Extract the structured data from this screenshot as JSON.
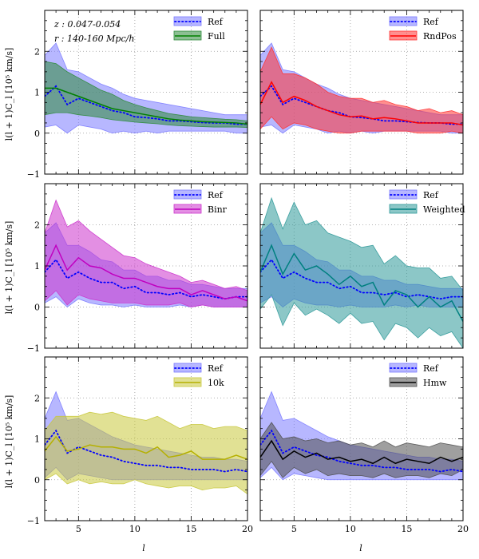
{
  "figure": {
    "xlabel": "l",
    "ylabel": "l(l + 1)C_l [10⁵ km/s]",
    "annotations": [
      "z : 0.047-0.054",
      "r : 140-160 Mpc/h"
    ]
  },
  "chart_data": [
    {
      "type": "line",
      "panel": "Full",
      "x": [
        2,
        3,
        4,
        5,
        6,
        7,
        8,
        9,
        10,
        11,
        12,
        13,
        14,
        15,
        16,
        17,
        18,
        19,
        20
      ],
      "xlim": [
        2,
        20
      ],
      "ylim": [
        -1,
        3
      ],
      "xticks": [
        5,
        10,
        15,
        20
      ],
      "yticks": [
        -1,
        0,
        1,
        2
      ],
      "grid": true,
      "legend_location": "top-right",
      "series": [
        {
          "name": "Ref",
          "color": "#0000ff",
          "band_color": "#7b7bff",
          "mean": [
            0.9,
            1.15,
            0.7,
            0.85,
            0.75,
            0.65,
            0.55,
            0.5,
            0.4,
            0.38,
            0.35,
            0.3,
            0.3,
            0.28,
            0.26,
            0.25,
            0.25,
            0.22,
            0.22
          ],
          "upper": [
            1.9,
            2.2,
            1.55,
            1.5,
            1.35,
            1.2,
            1.1,
            0.95,
            0.85,
            0.8,
            0.75,
            0.7,
            0.65,
            0.6,
            0.55,
            0.5,
            0.45,
            0.45,
            0.45
          ],
          "lower": [
            0.15,
            0.2,
            0.0,
            0.2,
            0.15,
            0.1,
            0.0,
            0.05,
            0.0,
            0.05,
            0.0,
            0.05,
            0.05,
            0.05,
            0.05,
            0.05,
            0.05,
            0.0,
            0.0
          ]
        },
        {
          "name": "Full",
          "color": "#008000",
          "band_color": "#2e8b3a",
          "mean": [
            1.1,
            1.1,
            1.0,
            0.9,
            0.8,
            0.7,
            0.6,
            0.55,
            0.5,
            0.45,
            0.4,
            0.35,
            0.32,
            0.3,
            0.28,
            0.27,
            0.26,
            0.25,
            0.22
          ],
          "upper": [
            1.75,
            1.7,
            1.5,
            1.35,
            1.2,
            1.05,
            0.95,
            0.8,
            0.7,
            0.62,
            0.55,
            0.48,
            0.44,
            0.4,
            0.38,
            0.36,
            0.34,
            0.33,
            0.3
          ],
          "lower": [
            0.45,
            0.5,
            0.5,
            0.45,
            0.42,
            0.38,
            0.33,
            0.3,
            0.27,
            0.25,
            0.23,
            0.2,
            0.18,
            0.17,
            0.16,
            0.15,
            0.15,
            0.15,
            0.14
          ]
        }
      ]
    },
    {
      "type": "line",
      "panel": "RndPos",
      "x": [
        2,
        3,
        4,
        5,
        6,
        7,
        8,
        9,
        10,
        11,
        12,
        13,
        14,
        15,
        16,
        17,
        18,
        19,
        20
      ],
      "xlim": [
        2,
        20
      ],
      "ylim": [
        -1,
        3
      ],
      "xticks": [
        5,
        10,
        15,
        20
      ],
      "yticks": [
        -1,
        0,
        1,
        2
      ],
      "grid": true,
      "legend_location": "top-right",
      "series": [
        {
          "name": "Ref",
          "color": "#0000ff",
          "band_color": "#7b7bff",
          "mean": [
            0.9,
            1.15,
            0.7,
            0.85,
            0.75,
            0.65,
            0.55,
            0.5,
            0.4,
            0.38,
            0.35,
            0.3,
            0.3,
            0.28,
            0.26,
            0.25,
            0.25,
            0.22,
            0.22
          ],
          "upper": [
            1.9,
            2.2,
            1.55,
            1.5,
            1.35,
            1.2,
            1.1,
            0.95,
            0.85,
            0.8,
            0.75,
            0.7,
            0.65,
            0.6,
            0.55,
            0.5,
            0.45,
            0.45,
            0.45
          ],
          "lower": [
            0.15,
            0.2,
            0.0,
            0.2,
            0.15,
            0.1,
            0.0,
            0.05,
            0.0,
            0.05,
            0.0,
            0.05,
            0.05,
            0.05,
            0.05,
            0.05,
            0.05,
            0.0,
            0.0
          ]
        },
        {
          "name": "RndPos",
          "color": "#ff0000",
          "band_color": "#ff3333",
          "mean": [
            0.7,
            1.25,
            0.75,
            0.9,
            0.8,
            0.65,
            0.55,
            0.45,
            0.4,
            0.42,
            0.35,
            0.38,
            0.35,
            0.3,
            0.25,
            0.25,
            0.25,
            0.25,
            0.2
          ],
          "upper": [
            1.5,
            2.1,
            1.45,
            1.45,
            1.35,
            1.2,
            1.0,
            0.9,
            0.85,
            0.85,
            0.75,
            0.8,
            0.7,
            0.65,
            0.55,
            0.6,
            0.5,
            0.55,
            0.45
          ],
          "lower": [
            0.1,
            0.4,
            0.1,
            0.25,
            0.2,
            0.1,
            0.05,
            0.0,
            0.0,
            0.05,
            0.05,
            0.05,
            0.05,
            0.05,
            0.0,
            0.0,
            0.0,
            0.05,
            0.0
          ]
        }
      ]
    },
    {
      "type": "line",
      "panel": "Binr",
      "x": [
        2,
        3,
        4,
        5,
        6,
        7,
        8,
        9,
        10,
        11,
        12,
        13,
        14,
        15,
        16,
        17,
        18,
        19,
        20
      ],
      "xlim": [
        2,
        20
      ],
      "ylim": [
        -1,
        3
      ],
      "xticks": [
        5,
        10,
        15,
        20
      ],
      "yticks": [
        -1,
        0,
        1,
        2
      ],
      "grid": true,
      "legend_location": "top-right",
      "series": [
        {
          "name": "Ref",
          "color": "#0000ff",
          "band_color": "#7b7bff",
          "mean": [
            0.85,
            1.15,
            0.7,
            0.85,
            0.7,
            0.6,
            0.6,
            0.45,
            0.5,
            0.35,
            0.35,
            0.3,
            0.35,
            0.25,
            0.3,
            0.25,
            0.2,
            0.25,
            0.25
          ],
          "upper": [
            1.8,
            2.05,
            1.5,
            1.5,
            1.35,
            1.15,
            1.1,
            0.9,
            0.9,
            0.75,
            0.75,
            0.65,
            0.65,
            0.55,
            0.55,
            0.5,
            0.45,
            0.45,
            0.45
          ],
          "lower": [
            0.1,
            0.25,
            0.0,
            0.2,
            0.1,
            0.05,
            0.05,
            0.0,
            0.05,
            0.0,
            0.0,
            0.0,
            0.05,
            0.0,
            0.05,
            0.0,
            0.0,
            0.0,
            0.0
          ]
        },
        {
          "name": "Binr",
          "color": "#c000c0",
          "band_color": "#cc33cc",
          "mean": [
            0.9,
            1.5,
            0.9,
            1.2,
            1.0,
            0.95,
            0.8,
            0.7,
            0.7,
            0.6,
            0.5,
            0.45,
            0.45,
            0.3,
            0.4,
            0.3,
            0.2,
            0.25,
            0.15
          ],
          "upper": [
            1.8,
            2.6,
            1.95,
            2.1,
            1.85,
            1.65,
            1.45,
            1.25,
            1.2,
            1.05,
            0.95,
            0.85,
            0.75,
            0.6,
            0.65,
            0.55,
            0.45,
            0.5,
            0.4
          ],
          "lower": [
            0.15,
            0.4,
            0.05,
            0.3,
            0.2,
            0.15,
            0.1,
            0.1,
            0.1,
            0.05,
            0.05,
            0.05,
            0.1,
            0.0,
            0.05,
            0.0,
            0.0,
            0.0,
            0.0
          ]
        }
      ]
    },
    {
      "type": "line",
      "panel": "Weighted",
      "x": [
        2,
        3,
        4,
        5,
        6,
        7,
        8,
        9,
        10,
        11,
        12,
        13,
        14,
        15,
        16,
        17,
        18,
        19,
        20
      ],
      "xlim": [
        2,
        20
      ],
      "ylim": [
        -1,
        3
      ],
      "xticks": [
        5,
        10,
        15,
        20
      ],
      "yticks": [
        -1,
        0,
        1,
        2
      ],
      "grid": true,
      "legend_location": "top-right",
      "series": [
        {
          "name": "Ref",
          "color": "#0000ff",
          "band_color": "#7b7bff",
          "mean": [
            0.85,
            1.15,
            0.7,
            0.85,
            0.7,
            0.6,
            0.6,
            0.45,
            0.5,
            0.35,
            0.35,
            0.3,
            0.35,
            0.25,
            0.3,
            0.25,
            0.2,
            0.25,
            0.25
          ],
          "upper": [
            1.8,
            2.05,
            1.5,
            1.5,
            1.35,
            1.15,
            1.1,
            0.9,
            0.9,
            0.75,
            0.75,
            0.65,
            0.65,
            0.55,
            0.55,
            0.5,
            0.45,
            0.45,
            0.45
          ],
          "lower": [
            0.1,
            0.25,
            0.0,
            0.2,
            0.1,
            0.05,
            0.05,
            0.0,
            0.05,
            0.0,
            0.0,
            0.0,
            0.05,
            0.0,
            0.05,
            0.0,
            0.0,
            0.0,
            0.0
          ]
        },
        {
          "name": "Weighted",
          "color": "#008080",
          "band_color": "#2e9999",
          "mean": [
            0.85,
            1.5,
            0.8,
            1.3,
            0.9,
            1.0,
            0.8,
            0.55,
            0.75,
            0.5,
            0.6,
            0.05,
            0.4,
            0.3,
            0.0,
            0.25,
            0.0,
            0.15,
            -0.35
          ],
          "upper": [
            1.8,
            2.65,
            1.9,
            2.55,
            2.0,
            2.1,
            1.8,
            1.7,
            1.6,
            1.45,
            1.5,
            1.05,
            1.25,
            1.0,
            0.95,
            0.95,
            0.7,
            0.75,
            0.4
          ],
          "lower": [
            -0.05,
            0.3,
            -0.45,
            0.1,
            -0.2,
            -0.05,
            -0.2,
            -0.4,
            -0.15,
            -0.4,
            -0.35,
            -0.8,
            -0.4,
            -0.5,
            -0.75,
            -0.5,
            -0.7,
            -0.6,
            -1.0
          ]
        }
      ]
    },
    {
      "type": "line",
      "panel": "10k",
      "x": [
        2,
        3,
        4,
        5,
        6,
        7,
        8,
        9,
        10,
        11,
        12,
        13,
        14,
        15,
        16,
        17,
        18,
        19,
        20
      ],
      "xlim": [
        2,
        20
      ],
      "ylim": [
        -1,
        3
      ],
      "xticks": [
        5,
        10,
        15,
        20
      ],
      "yticks": [
        -1,
        0,
        1,
        2
      ],
      "grid": true,
      "legend_location": "top-right",
      "series": [
        {
          "name": "Ref",
          "color": "#0000ff",
          "band_color": "#7b7bff",
          "mean": [
            0.85,
            1.2,
            0.65,
            0.8,
            0.7,
            0.6,
            0.55,
            0.45,
            0.4,
            0.35,
            0.35,
            0.3,
            0.3,
            0.25,
            0.25,
            0.25,
            0.2,
            0.25,
            0.2
          ],
          "upper": [
            1.5,
            2.15,
            1.45,
            1.5,
            1.35,
            1.2,
            1.05,
            0.95,
            0.85,
            0.8,
            0.75,
            0.7,
            0.65,
            0.6,
            0.55,
            0.55,
            0.5,
            0.5,
            0.45
          ],
          "lower": [
            0.05,
            0.3,
            0.0,
            0.15,
            0.1,
            0.05,
            0.0,
            0.0,
            0.0,
            0.0,
            0.0,
            0.0,
            0.0,
            0.0,
            0.0,
            0.0,
            0.0,
            0.0,
            0.0
          ]
        },
        {
          "name": "10k",
          "color": "#b5b000",
          "band_color": "#c8c83c",
          "mean": [
            0.7,
            1.05,
            0.7,
            0.75,
            0.85,
            0.8,
            0.8,
            0.75,
            0.75,
            0.65,
            0.8,
            0.55,
            0.6,
            0.7,
            0.5,
            0.5,
            0.5,
            0.6,
            0.5
          ],
          "upper": [
            1.2,
            1.55,
            1.55,
            1.55,
            1.65,
            1.6,
            1.65,
            1.55,
            1.5,
            1.45,
            1.55,
            1.4,
            1.25,
            1.35,
            1.35,
            1.25,
            1.3,
            1.3,
            1.2
          ],
          "lower": [
            0.0,
            0.15,
            -0.1,
            0.0,
            -0.1,
            -0.05,
            -0.1,
            -0.1,
            0.0,
            -0.1,
            -0.15,
            -0.2,
            -0.15,
            -0.15,
            -0.25,
            -0.2,
            -0.2,
            -0.15,
            -0.35
          ]
        }
      ]
    },
    {
      "type": "line",
      "panel": "Hmw",
      "x": [
        2,
        3,
        4,
        5,
        6,
        7,
        8,
        9,
        10,
        11,
        12,
        13,
        14,
        15,
        16,
        17,
        18,
        19,
        20
      ],
      "xlim": [
        2,
        20
      ],
      "ylim": [
        -1,
        3
      ],
      "xticks": [
        5,
        10,
        15,
        20
      ],
      "yticks": [
        -1,
        0,
        1,
        2
      ],
      "grid": true,
      "legend_location": "top-right",
      "series": [
        {
          "name": "Ref",
          "color": "#0000ff",
          "band_color": "#7b7bff",
          "mean": [
            0.85,
            1.2,
            0.65,
            0.8,
            0.7,
            0.6,
            0.55,
            0.45,
            0.4,
            0.35,
            0.35,
            0.3,
            0.3,
            0.25,
            0.25,
            0.25,
            0.2,
            0.25,
            0.2
          ],
          "upper": [
            1.5,
            2.15,
            1.45,
            1.5,
            1.35,
            1.2,
            1.05,
            0.95,
            0.85,
            0.8,
            0.75,
            0.7,
            0.65,
            0.6,
            0.55,
            0.55,
            0.5,
            0.5,
            0.45
          ],
          "lower": [
            0.05,
            0.3,
            0.0,
            0.15,
            0.1,
            0.05,
            0.0,
            0.0,
            0.0,
            0.0,
            0.0,
            0.0,
            0.0,
            0.0,
            0.0,
            0.0,
            0.0,
            0.0,
            0.0
          ]
        },
        {
          "name": "Hmw",
          "color": "#000000",
          "band_color": "#505050",
          "mean": [
            0.55,
            0.95,
            0.5,
            0.7,
            0.55,
            0.65,
            0.5,
            0.55,
            0.45,
            0.5,
            0.4,
            0.55,
            0.4,
            0.5,
            0.45,
            0.4,
            0.55,
            0.45,
            0.55
          ],
          "upper": [
            1.0,
            1.4,
            1.0,
            1.05,
            0.95,
            1.0,
            0.9,
            0.95,
            0.85,
            0.9,
            0.8,
            0.95,
            0.8,
            0.9,
            0.85,
            0.8,
            0.9,
            0.85,
            0.8
          ],
          "lower": [
            0.1,
            0.45,
            0.05,
            0.3,
            0.15,
            0.25,
            0.1,
            0.15,
            0.1,
            0.1,
            0.05,
            0.15,
            0.05,
            0.1,
            0.1,
            0.05,
            0.15,
            0.1,
            0.25
          ]
        }
      ]
    }
  ]
}
